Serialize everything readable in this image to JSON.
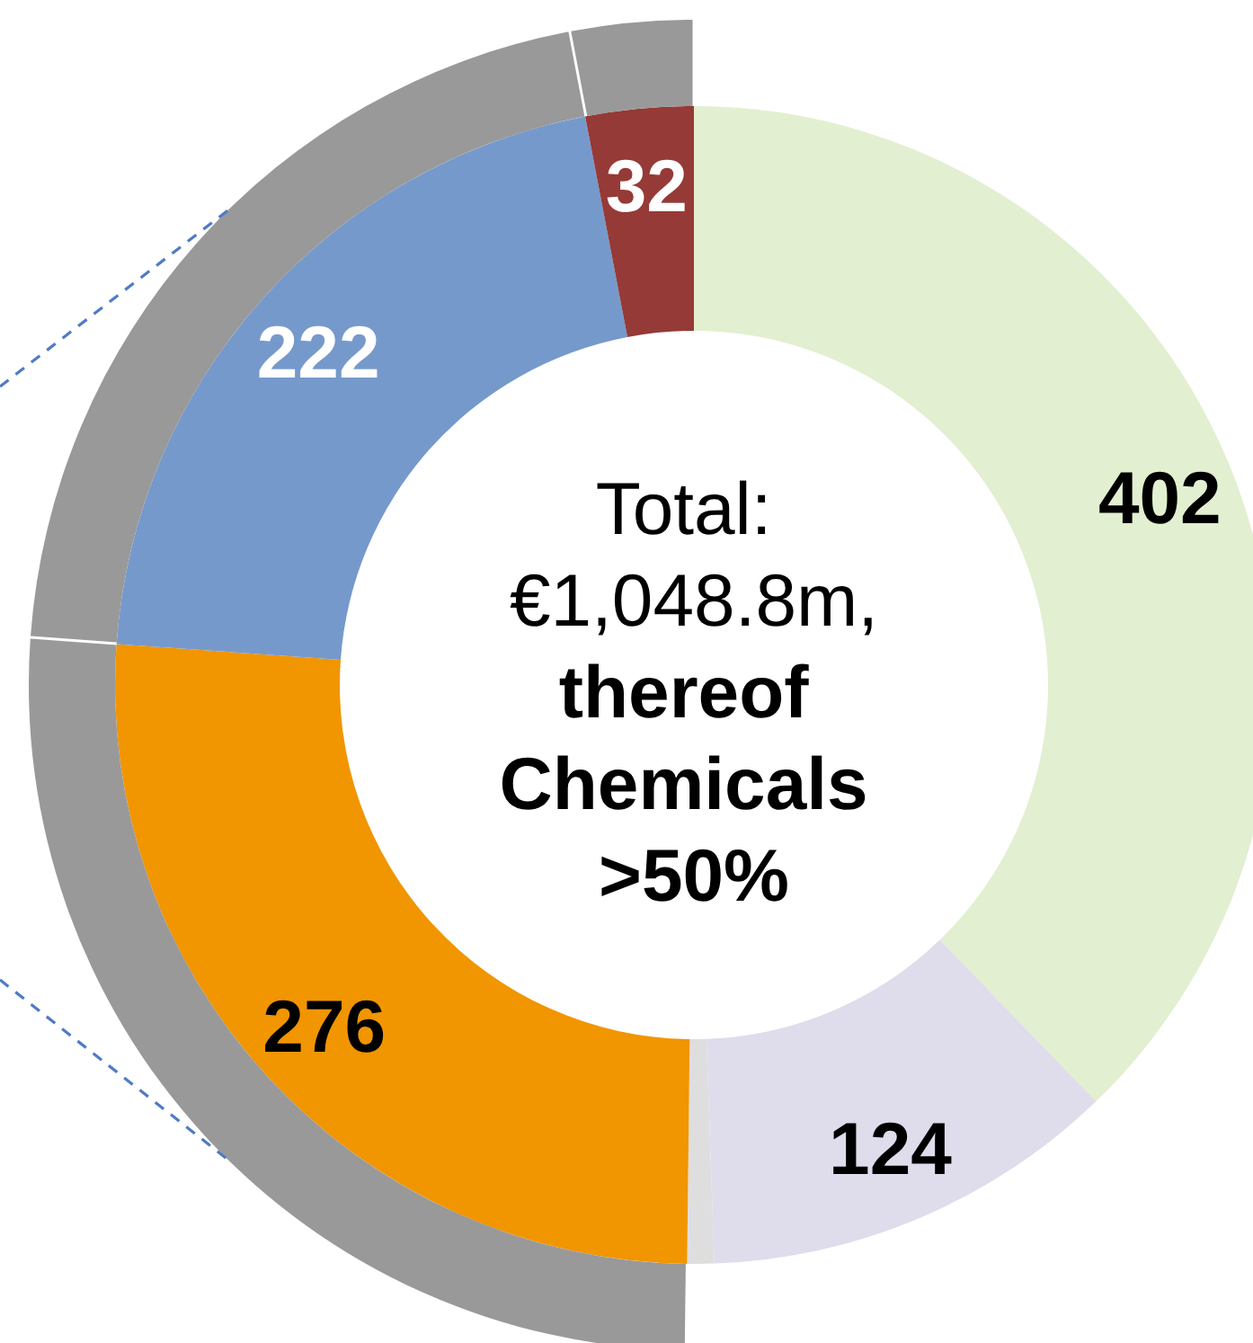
{
  "chart_data": {
    "type": "donut",
    "categories": [
      null,
      null,
      null,
      null,
      null,
      null
    ],
    "series": [
      {
        "values": [
          402,
          124,
          8,
          276,
          222,
          32
        ],
        "colors": [
          "#e2efd0",
          "#dfdcec",
          "#dedede",
          "#f19500",
          "#7699cc",
          "#953a37"
        ],
        "value_labels": [
          "402",
          "124",
          null,
          "276",
          "222",
          "32"
        ]
      },
      {
        "values": [
          null,
          null,
          null,
          52.1,
          41.9,
          6.0
        ],
        "color": "#999999"
      }
    ],
    "annotations": [
      "Total: €1,048.8m,",
      "thereof Chemicals >50%"
    ]
  }
}
